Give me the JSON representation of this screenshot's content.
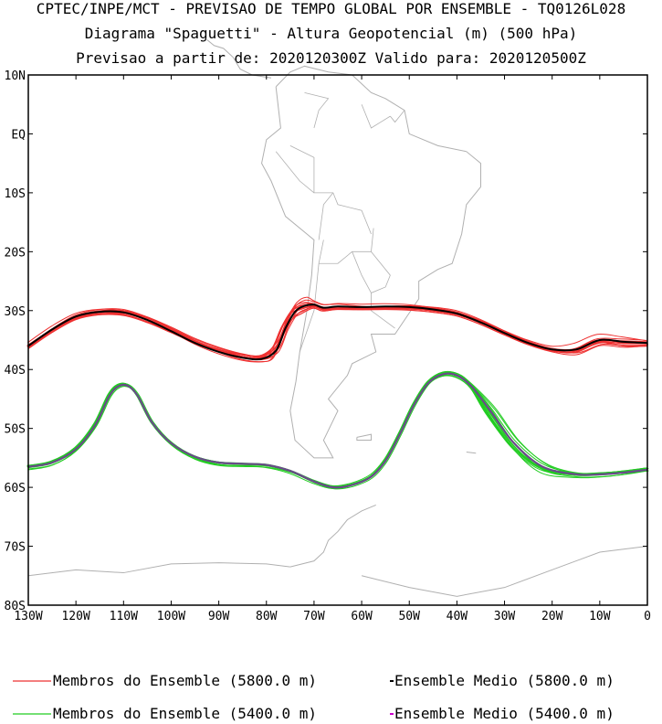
{
  "header": {
    "line1": "CPTEC/INPE/MCT - PREVISAO DE TEMPO GLOBAL POR ENSEMBLE - TQ0126L028",
    "line2": "Diagrama \"Spaguetti\" - Altura Geopotencial (m) (500 hPa)",
    "line3": "Previsao a partir de: 2020120300Z  Valido para: 2020120500Z"
  },
  "axes": {
    "lat_labels": [
      "10N",
      "EQ",
      "10S",
      "20S",
      "30S",
      "40S",
      "50S",
      "60S",
      "70S",
      "80S"
    ],
    "lon_labels": [
      "130W",
      "120W",
      "110W",
      "100W",
      "90W",
      "80W",
      "70W",
      "60W",
      "50W",
      "40W",
      "30W",
      "20W",
      "10W",
      "0"
    ]
  },
  "contours": {
    "h5800": {
      "mean": [
        [
          -130,
          -36
        ],
        [
          -125,
          -33.2
        ],
        [
          -120,
          -31
        ],
        [
          -115,
          -30.2
        ],
        [
          -110,
          -30.3
        ],
        [
          -105,
          -31.6
        ],
        [
          -100,
          -33.5
        ],
        [
          -95,
          -35.5
        ],
        [
          -90,
          -37
        ],
        [
          -85,
          -38
        ],
        [
          -81,
          -38.2
        ],
        [
          -78,
          -36.8
        ],
        [
          -76,
          -33
        ],
        [
          -74,
          -30.2
        ],
        [
          -72,
          -29.2
        ],
        [
          -70,
          -29
        ],
        [
          -68,
          -29.5
        ],
        [
          -65,
          -29.3
        ],
        [
          -60,
          -29.4
        ],
        [
          -55,
          -29.3
        ],
        [
          -50,
          -29.4
        ],
        [
          -45,
          -29.8
        ],
        [
          -40,
          -30.5
        ],
        [
          -35,
          -32
        ],
        [
          -30,
          -33.8
        ],
        [
          -25,
          -35.5
        ],
        [
          -20,
          -36.6
        ],
        [
          -15,
          -36.6
        ],
        [
          -10,
          -35
        ],
        [
          -5,
          -35.3
        ],
        [
          0,
          -35.5
        ]
      ]
    },
    "h5400": {
      "mean": [
        [
          -130,
          -56.5
        ],
        [
          -125,
          -55.8
        ],
        [
          -120,
          -53.5
        ],
        [
          -116,
          -49.5
        ],
        [
          -113,
          -44.5
        ],
        [
          -111,
          -42.8
        ],
        [
          -109,
          -42.8
        ],
        [
          -107,
          -44.5
        ],
        [
          -104,
          -49
        ],
        [
          -100,
          -52.5
        ],
        [
          -95,
          -54.8
        ],
        [
          -90,
          -55.8
        ],
        [
          -85,
          -56
        ],
        [
          -80,
          -56.2
        ],
        [
          -75,
          -57.2
        ],
        [
          -70,
          -59
        ],
        [
          -66,
          -60
        ],
        [
          -62,
          -59.6
        ],
        [
          -58,
          -58.2
        ],
        [
          -55,
          -55.5
        ],
        [
          -52,
          -51
        ],
        [
          -49,
          -46
        ],
        [
          -46,
          -42.3
        ],
        [
          -43,
          -40.8
        ],
        [
          -40,
          -41
        ],
        [
          -37,
          -42.8
        ],
        [
          -33,
          -47
        ],
        [
          -28,
          -52.5
        ],
        [
          -22,
          -56.5
        ],
        [
          -15,
          -57.8
        ],
        [
          -10,
          -57.8
        ],
        [
          -5,
          -57.5
        ],
        [
          0,
          -57
        ]
      ]
    }
  },
  "legend": {
    "members_5800": "Membros do Ensemble (5800.0 m)",
    "mean_5800": "Ensemble Medio (5800.0 m)",
    "members_5400": "Membros do Ensemble (5400.0 m)",
    "mean_5400": "Ensemble Medio (5400.0 m)"
  },
  "colors": {
    "members_5800": "#ee3030",
    "mean_5800": "#000000",
    "members_5400": "#22cc22",
    "mean_5400": "#6a4a8a",
    "legend_mean_5400": "#cc00cc",
    "coast": "#b0b0b0"
  }
}
